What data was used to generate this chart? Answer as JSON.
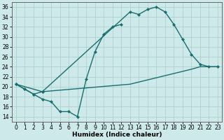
{
  "xlabel": "Humidex (Indice chaleur)",
  "background_color": "#cde9e9",
  "grid_color": "#aacccc",
  "line_color": "#1a6e6e",
  "xlim": [
    -0.5,
    23.5
  ],
  "ylim": [
    13,
    37
  ],
  "yticks": [
    14,
    16,
    18,
    20,
    22,
    24,
    26,
    28,
    30,
    32,
    34,
    36
  ],
  "xticks": [
    0,
    1,
    2,
    3,
    4,
    5,
    6,
    7,
    8,
    9,
    10,
    11,
    12,
    13,
    14,
    15,
    16,
    17,
    18,
    19,
    20,
    21,
    22,
    23
  ],
  "curve_top_x": [
    0,
    1,
    2,
    3,
    13,
    14,
    15,
    16,
    17,
    18,
    19,
    20,
    21,
    22,
    23
  ],
  "curve_top_y": [
    20.5,
    19.5,
    18.5,
    19.0,
    35.0,
    34.5,
    35.5,
    36.0,
    35.0,
    32.5,
    29.5,
    26.5,
    24.5,
    24.0,
    24.0
  ],
  "curve_mid_x": [
    0,
    1,
    2,
    3,
    4,
    5,
    6,
    7,
    8,
    9,
    10,
    11,
    12
  ],
  "curve_mid_y": [
    20.5,
    19.5,
    18.5,
    17.5,
    17.0,
    15.0,
    15.0,
    14.0,
    21.5,
    27.0,
    30.5,
    32.0,
    32.5
  ],
  "curve_bot_x": [
    0,
    3,
    13,
    20,
    21,
    22,
    23
  ],
  "curve_bot_y": [
    20.5,
    19.0,
    20.5,
    23.5,
    24.0,
    24.0,
    24.0
  ],
  "figsize": [
    3.2,
    2.0
  ],
  "dpi": 100,
  "tick_labelsize": 5.5,
  "xlabel_fontsize": 6.5
}
